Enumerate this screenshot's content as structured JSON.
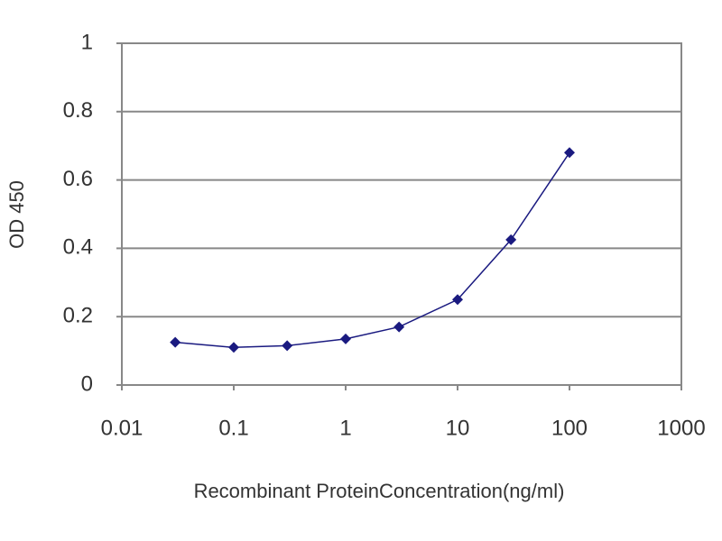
{
  "chart_data": {
    "type": "line",
    "x_label": "Recombinant ProteinConcentration(ng/ml)",
    "y_label": "OD 450",
    "x": [
      0.03,
      0.1,
      0.3,
      1,
      3,
      10,
      30,
      100
    ],
    "series": [
      {
        "color": "#1a1a80",
        "values": [
          0.125,
          0.11,
          0.115,
          0.135,
          0.17,
          0.25,
          0.425,
          0.68
        ]
      }
    ],
    "x_log": true,
    "xlim": [
      0.01,
      1000
    ],
    "xticks": [
      0.01,
      0.1,
      1,
      10,
      100,
      1000
    ],
    "ylim": [
      0,
      1
    ],
    "yticks": [
      0,
      0.2,
      0.4,
      0.6,
      0.8,
      1
    ],
    "grid": true
  }
}
